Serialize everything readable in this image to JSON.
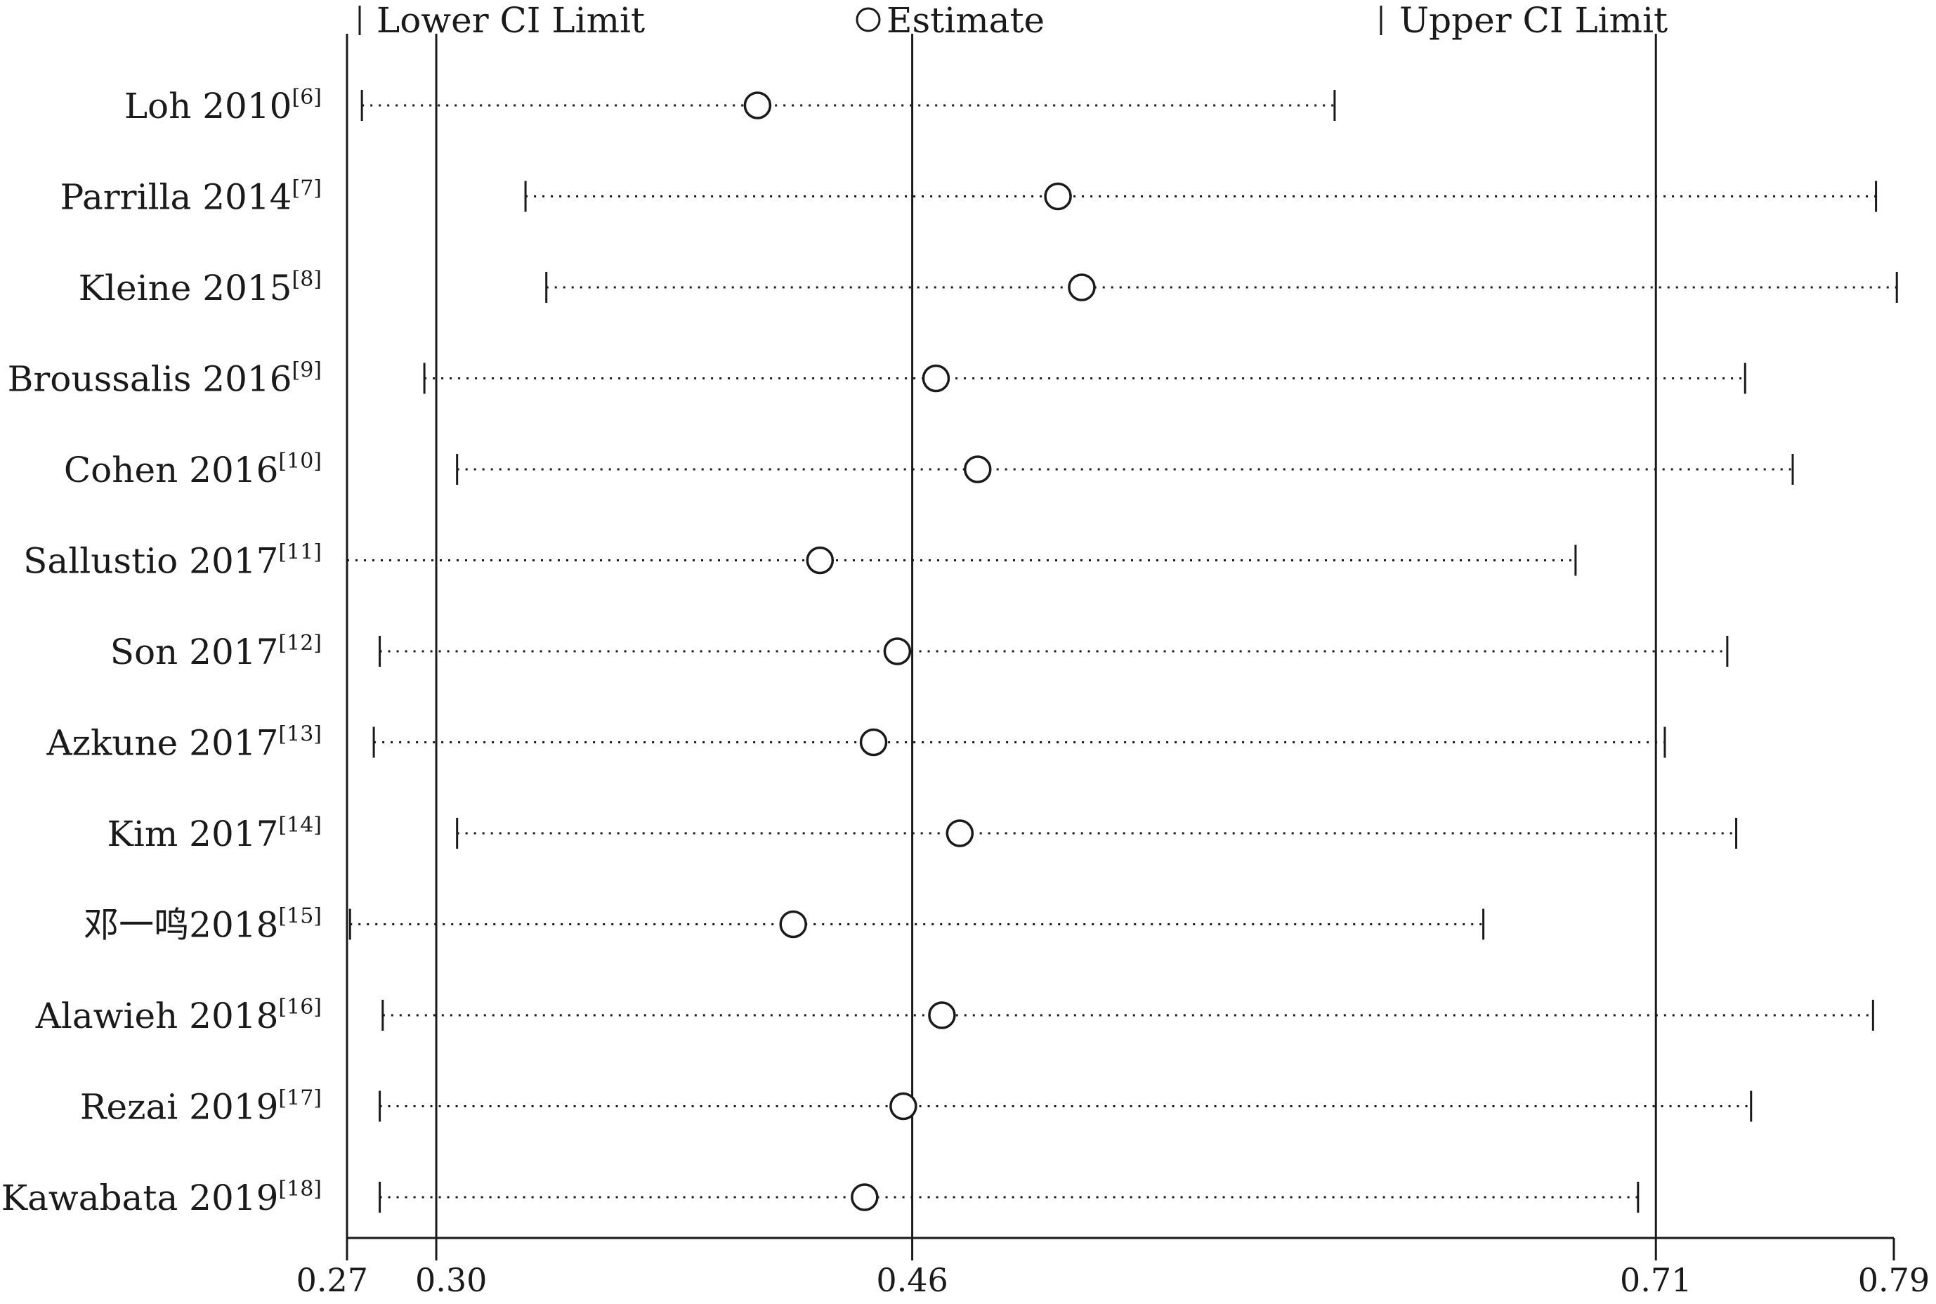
{
  "chart_data": {
    "type": "forest",
    "title": "",
    "xlabel": "",
    "ylabel": "",
    "xlim": [
      0.27,
      0.79
    ],
    "x_ticks": [
      "0.27",
      "0.30",
      "0.46",
      "0.71",
      "0.79"
    ],
    "x_tick_values": [
      0.27,
      0.3,
      0.46,
      0.71,
      0.79
    ],
    "reference_lines": [
      0.3,
      0.46,
      0.71
    ],
    "grid": false,
    "legend_position": "top",
    "legend": {
      "lower": "Lower CI Limit",
      "estimate": "Estimate",
      "upper": "Upper CI Limit"
    },
    "studies": [
      {
        "label": "Loh 2010",
        "ref": "[6]",
        "lower": 0.275,
        "estimate": 0.408,
        "upper": 0.602
      },
      {
        "label": "Parrilla 2014",
        "ref": "[7]",
        "lower": 0.33,
        "estimate": 0.509,
        "upper": 0.784
      },
      {
        "label": "Kleine 2015",
        "ref": "[8]",
        "lower": 0.337,
        "estimate": 0.517,
        "upper": 0.791
      },
      {
        "label": "Broussalis 2016",
        "ref": "[9]",
        "lower": 0.296,
        "estimate": 0.468,
        "upper": 0.74
      },
      {
        "label": "Cohen 2016",
        "ref": "[10]",
        "lower": 0.307,
        "estimate": 0.482,
        "upper": 0.756
      },
      {
        "label": "Sallustio 2017",
        "ref": "[11]",
        "lower": 0.27,
        "estimate": 0.429,
        "upper": 0.683
      },
      {
        "label": "Son 2017",
        "ref": "[12]",
        "lower": 0.281,
        "estimate": 0.455,
        "upper": 0.734
      },
      {
        "label": "Azkune 2017",
        "ref": "[13]",
        "lower": 0.279,
        "estimate": 0.447,
        "upper": 0.713
      },
      {
        "label": "Kim 2017",
        "ref": "[14]",
        "lower": 0.307,
        "estimate": 0.476,
        "upper": 0.737
      },
      {
        "label": "邓一鸣2018",
        "ref": "[15]",
        "lower": 0.271,
        "estimate": 0.42,
        "upper": 0.652
      },
      {
        "label": "Alawieh 2018",
        "ref": "[16]",
        "lower": 0.282,
        "estimate": 0.47,
        "upper": 0.783
      },
      {
        "label": "Rezai 2019",
        "ref": "[17]",
        "lower": 0.281,
        "estimate": 0.457,
        "upper": 0.742
      },
      {
        "label": "Kawabata 2019",
        "ref": "[18]",
        "lower": 0.281,
        "estimate": 0.444,
        "upper": 0.704
      }
    ]
  }
}
